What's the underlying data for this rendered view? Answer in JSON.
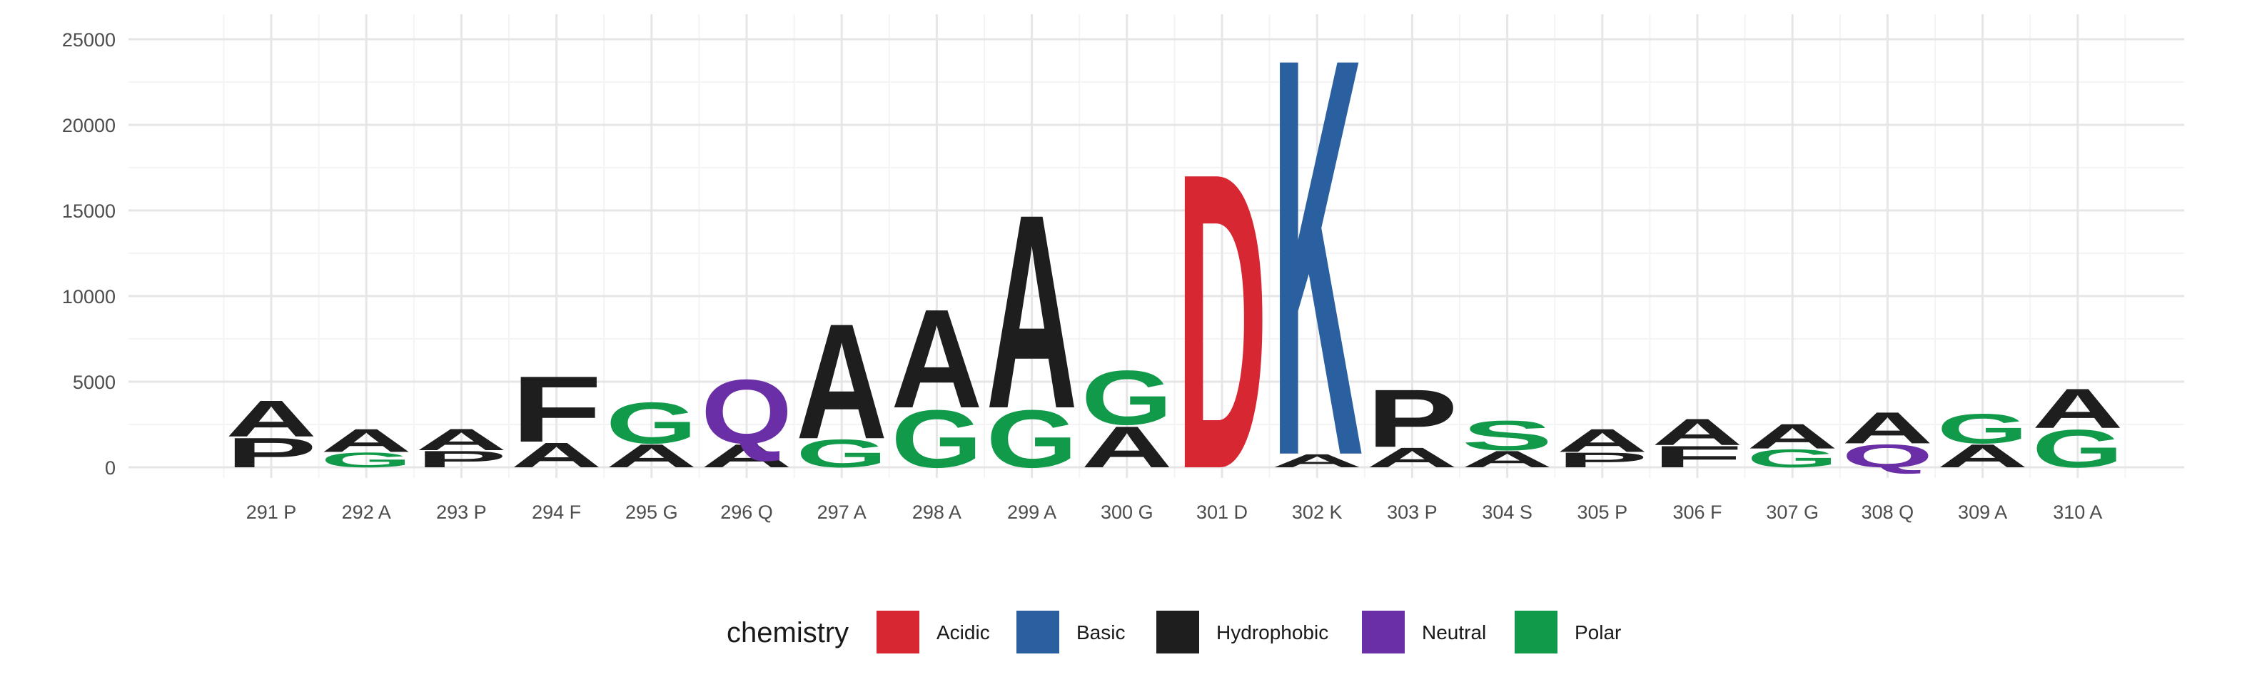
{
  "chart_data": {
    "type": "sequence-logo",
    "title": "",
    "xlabel": "",
    "ylabel": "",
    "ylim": [
      0,
      25000
    ],
    "yticks": [
      0,
      5000,
      10000,
      15000,
      20000,
      25000
    ],
    "ytick_labels": [
      "0",
      "5000",
      "10000",
      "15000",
      "20000",
      "25000"
    ],
    "grid": true,
    "legend": {
      "title": "chemistry",
      "placement": "bottom",
      "items": [
        {
          "label": "Acidic",
          "color": "#d62732"
        },
        {
          "label": "Basic",
          "color": "#2a5fa0"
        },
        {
          "label": "Hydrophobic",
          "color": "#1e1e1e"
        },
        {
          "label": "Neutral",
          "color": "#6a2fa6"
        },
        {
          "label": "Polar",
          "color": "#109a4a"
        }
      ]
    },
    "positions": [
      {
        "label": "291 P",
        "letters": [
          {
            "char": "P",
            "chem": "Hydrophobic",
            "value": 1800
          },
          {
            "char": "A",
            "chem": "Hydrophobic",
            "value": 2200
          }
        ]
      },
      {
        "label": "292 A",
        "letters": [
          {
            "char": "G",
            "chem": "Polar",
            "value": 900
          },
          {
            "char": "A",
            "chem": "Hydrophobic",
            "value": 1400
          }
        ]
      },
      {
        "label": "293 P",
        "letters": [
          {
            "char": "P",
            "chem": "Hydrophobic",
            "value": 1000
          },
          {
            "char": "A",
            "chem": "Hydrophobic",
            "value": 1300
          }
        ]
      },
      {
        "label": "294 F",
        "letters": [
          {
            "char": "A",
            "chem": "Hydrophobic",
            "value": 1500
          },
          {
            "char": "F",
            "chem": "Hydrophobic",
            "value": 4000
          }
        ]
      },
      {
        "label": "295 G",
        "letters": [
          {
            "char": "A",
            "chem": "Hydrophobic",
            "value": 1400
          },
          {
            "char": "G",
            "chem": "Polar",
            "value": 2500
          }
        ]
      },
      {
        "label": "296 Q",
        "letters": [
          {
            "char": "A",
            "chem": "Hydrophobic",
            "value": 1400
          },
          {
            "char": "Q",
            "chem": "Neutral",
            "value": 3900
          }
        ]
      },
      {
        "label": "297 A",
        "letters": [
          {
            "char": "G",
            "chem": "Polar",
            "value": 1700
          },
          {
            "char": "A",
            "chem": "Hydrophobic",
            "value": 7000
          }
        ]
      },
      {
        "label": "298 A",
        "letters": [
          {
            "char": "G",
            "chem": "Polar",
            "value": 3500
          },
          {
            "char": "A",
            "chem": "Hydrophobic",
            "value": 6000
          }
        ]
      },
      {
        "label": "299 A",
        "letters": [
          {
            "char": "G",
            "chem": "Polar",
            "value": 3500
          },
          {
            "char": "A",
            "chem": "Hydrophobic",
            "value": 11800
          }
        ]
      },
      {
        "label": "300 G",
        "letters": [
          {
            "char": "A",
            "chem": "Hydrophobic",
            "value": 2500
          },
          {
            "char": "G",
            "chem": "Polar",
            "value": 3300
          }
        ]
      },
      {
        "label": "301 D",
        "letters": [
          {
            "char": "D",
            "chem": "Acidic",
            "value": 18000
          }
        ]
      },
      {
        "label": "302 K",
        "letters": [
          {
            "char": "A",
            "chem": "Hydrophobic",
            "value": 800
          },
          {
            "char": "K",
            "chem": "Basic",
            "value": 24200
          }
        ]
      },
      {
        "label": "303 P",
        "letters": [
          {
            "char": "A",
            "chem": "Hydrophobic",
            "value": 1200
          },
          {
            "char": "P",
            "chem": "Hydrophobic",
            "value": 3500
          }
        ]
      },
      {
        "label": "304 S",
        "letters": [
          {
            "char": "A",
            "chem": "Hydrophobic",
            "value": 1000
          },
          {
            "char": "S",
            "chem": "Polar",
            "value": 1800
          }
        ]
      },
      {
        "label": "305 P",
        "letters": [
          {
            "char": "P",
            "chem": "Hydrophobic",
            "value": 900
          },
          {
            "char": "A",
            "chem": "Hydrophobic",
            "value": 1400
          }
        ]
      },
      {
        "label": "306 F",
        "letters": [
          {
            "char": "F",
            "chem": "Hydrophobic",
            "value": 1300
          },
          {
            "char": "A",
            "chem": "Hydrophobic",
            "value": 1600
          }
        ]
      },
      {
        "label": "307 G",
        "letters": [
          {
            "char": "G",
            "chem": "Polar",
            "value": 1100
          },
          {
            "char": "A",
            "chem": "Hydrophobic",
            "value": 1500
          }
        ]
      },
      {
        "label": "308 Q",
        "letters": [
          {
            "char": "Q",
            "chem": "Neutral",
            "value": 1400
          },
          {
            "char": "A",
            "chem": "Hydrophobic",
            "value": 1900
          }
        ]
      },
      {
        "label": "309 A",
        "letters": [
          {
            "char": "A",
            "chem": "Hydrophobic",
            "value": 1400
          },
          {
            "char": "G",
            "chem": "Polar",
            "value": 1800
          }
        ]
      },
      {
        "label": "310 A",
        "letters": [
          {
            "char": "G",
            "chem": "Polar",
            "value": 2300
          },
          {
            "char": "A",
            "chem": "Hydrophobic",
            "value": 2400
          }
        ]
      }
    ]
  }
}
